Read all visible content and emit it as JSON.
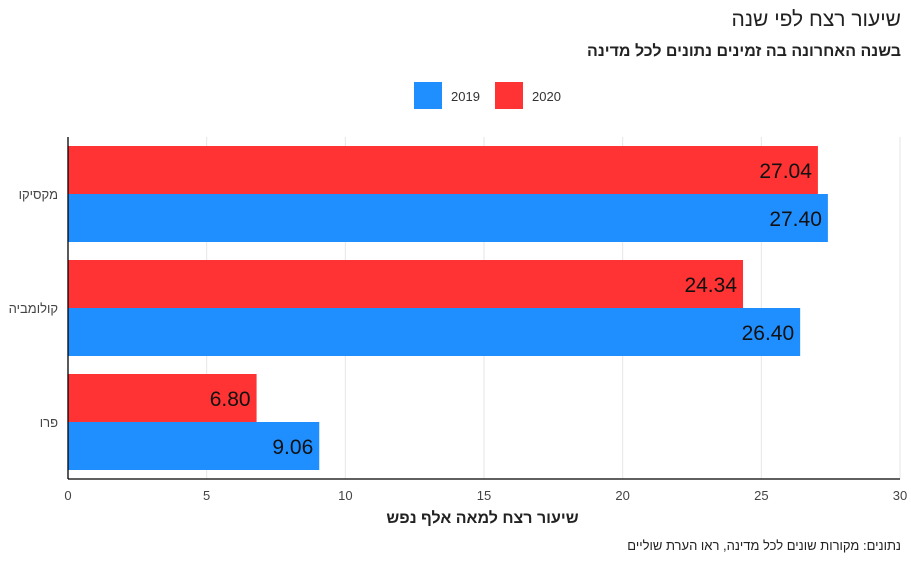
{
  "title": "שיעור רצח לפי שנה",
  "subtitle": "בשנה האחרונה בה זמינים נתונים לכל מדינה",
  "source_note": "נתונים: מקורות שונים לכל מדינה, ראו הערת שוליים",
  "colors": {
    "2019": "#1f8fff",
    "2020": "#ff3333",
    "grid": "#e6e6e6",
    "axis": "#000000"
  },
  "chart_data": {
    "type": "bar",
    "orientation": "horizontal",
    "xlabel": "שיעור רצח למאה אלף נפש",
    "ylabel": "",
    "xlim": [
      0,
      30
    ],
    "xticks": [
      0,
      5,
      10,
      15,
      20,
      25,
      30
    ],
    "grid": true,
    "legend_position": "top-center",
    "categories": [
      "מקסיקו",
      "קולומביה",
      "פרו"
    ],
    "series": [
      {
        "name": "2020",
        "color": "#ff3333",
        "values": [
          27.04,
          24.34,
          6.8
        ],
        "labels": [
          "27.04",
          "24.34",
          "6.80"
        ]
      },
      {
        "name": "2019",
        "color": "#1f8fff",
        "values": [
          27.4,
          26.4,
          9.06
        ],
        "labels": [
          "27.40",
          "26.40",
          "9.06"
        ]
      }
    ]
  }
}
